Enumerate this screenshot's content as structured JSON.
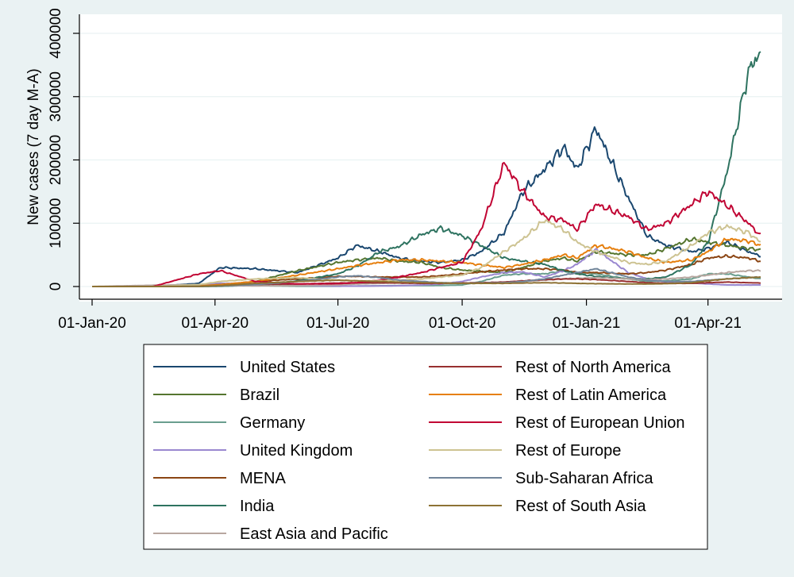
{
  "chart_data": {
    "type": "line",
    "xlabel": "",
    "ylabel": "New cases (7 day M-A)",
    "x_tick_labels": [
      "01-Jan-20",
      "01-Apr-20",
      "01-Jul-20",
      "01-Oct-20",
      "01-Jan-21",
      "01-Apr-21"
    ],
    "y_tick_labels": [
      "0",
      "100000",
      "200000",
      "300000",
      "400000"
    ],
    "x_range": [
      "2020-01-01",
      "2021-05-10"
    ],
    "ylim": [
      0,
      400000
    ],
    "grid": "horizontal",
    "legend_position": "bottom",
    "legend_columns": 2,
    "x": [
      "2020-01-01",
      "2020-02-15",
      "2020-03-20",
      "2020-04-05",
      "2020-05-01",
      "2020-06-01",
      "2020-07-01",
      "2020-07-15",
      "2020-08-01",
      "2020-08-15",
      "2020-09-01",
      "2020-09-15",
      "2020-10-01",
      "2020-10-15",
      "2020-11-01",
      "2020-11-15",
      "2020-12-01",
      "2020-12-15",
      "2020-12-25",
      "2021-01-08",
      "2021-02-01",
      "2021-02-15",
      "2021-03-01",
      "2021-03-20",
      "2021-04-01",
      "2021-04-15",
      "2021-05-01",
      "2021-05-10"
    ],
    "series": [
      {
        "name": "United States",
        "color": "#1a476f",
        "values": [
          0,
          0,
          5000,
          30000,
          28000,
          22000,
          45000,
          65000,
          55000,
          45000,
          40000,
          38000,
          42000,
          55000,
          85000,
          150000,
          185000,
          220000,
          185000,
          250000,
          140000,
          80000,
          65000,
          55000,
          60000,
          70000,
          55000,
          48000
        ]
      },
      {
        "name": "Brazil",
        "color": "#55752f",
        "values": [
          0,
          0,
          0,
          1000,
          8000,
          25000,
          38000,
          42000,
          45000,
          40000,
          38000,
          30000,
          26000,
          24000,
          22000,
          30000,
          40000,
          45000,
          40000,
          55000,
          50000,
          50000,
          60000,
          75000,
          70000,
          65000,
          60000,
          58000
        ]
      },
      {
        "name": "Germany",
        "color": "#6a9e8e",
        "values": [
          0,
          0,
          2000,
          5000,
          1500,
          500,
          500,
          800,
          1200,
          1500,
          1500,
          1800,
          2500,
          8000,
          18000,
          20000,
          20000,
          25000,
          22000,
          20000,
          12000,
          8000,
          9000,
          12000,
          20000,
          20000,
          15000,
          12000
        ]
      },
      {
        "name": "United Kingdom",
        "color": "#9a88d0",
        "values": [
          0,
          0,
          2000,
          5000,
          4500,
          1500,
          700,
          600,
          900,
          1200,
          2500,
          4000,
          8000,
          15000,
          22000,
          23000,
          15000,
          25000,
          35000,
          58000,
          22000,
          12000,
          7000,
          5500,
          4000,
          2500,
          2500,
          2500
        ]
      },
      {
        "name": "MENA",
        "color": "#8b4513",
        "values": [
          0,
          0,
          1000,
          3000,
          8000,
          12000,
          16000,
          16000,
          15000,
          15000,
          15000,
          17000,
          20000,
          23000,
          26000,
          28000,
          28000,
          26000,
          22000,
          22000,
          20000,
          22000,
          26000,
          35000,
          45000,
          48000,
          45000,
          40000
        ]
      },
      {
        "name": "India",
        "color": "#2e7360",
        "values": [
          0,
          0,
          100,
          500,
          2000,
          9000,
          20000,
          32000,
          55000,
          63000,
          82000,
          92000,
          80000,
          65000,
          45000,
          40000,
          35000,
          25000,
          20000,
          16000,
          12000,
          12000,
          15000,
          35000,
          70000,
          180000,
          340000,
          372000
        ]
      },
      {
        "name": "East Asia and Pacific",
        "color": "#b8a7a0",
        "values": [
          0,
          2000,
          3000,
          1500,
          1000,
          1500,
          2500,
          4000,
          5000,
          6000,
          6500,
          6000,
          5500,
          6000,
          7000,
          8000,
          10000,
          12000,
          13000,
          14000,
          12000,
          11000,
          12000,
          15000,
          18000,
          22000,
          25000,
          25000
        ]
      },
      {
        "name": "Rest of North America",
        "color": "#983030",
        "values": [
          0,
          0,
          500,
          2500,
          3500,
          4000,
          5500,
          6000,
          6000,
          5500,
          5000,
          5000,
          5500,
          6000,
          7000,
          9000,
          11000,
          12000,
          12000,
          11000,
          8000,
          6000,
          5000,
          5000,
          6000,
          7000,
          6000,
          5500
        ]
      },
      {
        "name": "Rest of Latin America",
        "color": "#e67f0e",
        "values": [
          0,
          0,
          1000,
          3000,
          8000,
          18000,
          28000,
          33000,
          38000,
          42000,
          42000,
          40000,
          38000,
          34000,
          30000,
          35000,
          42000,
          50000,
          45000,
          65000,
          55000,
          45000,
          38000,
          42000,
          55000,
          75000,
          72000,
          65000
        ]
      },
      {
        "name": "Rest of European Union",
        "color": "#c10534",
        "values": [
          0,
          0,
          20000,
          25000,
          8000,
          4000,
          4500,
          6000,
          10000,
          15000,
          22000,
          30000,
          38000,
          90000,
          195000,
          150000,
          110000,
          105000,
          90000,
          130000,
          110000,
          90000,
          100000,
          130000,
          150000,
          128000,
          100000,
          80000
        ]
      },
      {
        "name": "Rest of Europe",
        "color": "#cdc392",
        "values": [
          0,
          0,
          3000,
          8000,
          12000,
          14000,
          10000,
          9000,
          9000,
          10000,
          12000,
          15000,
          18000,
          30000,
          55000,
          75000,
          105000,
          90000,
          70000,
          55000,
          38000,
          35000,
          40000,
          65000,
          85000,
          95000,
          85000,
          70000
        ]
      },
      {
        "name": "Sub-Saharan Africa",
        "color": "#71859a",
        "values": [
          0,
          0,
          200,
          1000,
          3000,
          8000,
          15000,
          17000,
          14000,
          10000,
          8000,
          6000,
          5000,
          5500,
          6000,
          8000,
          12000,
          18000,
          22000,
          28000,
          15000,
          10000,
          8000,
          8000,
          10000,
          12000,
          14000,
          15000
        ]
      },
      {
        "name": "Rest of South Asia",
        "color": "#8d7234",
        "values": [
          0,
          0,
          300,
          1500,
          5000,
          8000,
          10000,
          9000,
          8000,
          7000,
          6000,
          5500,
          5000,
          5000,
          5000,
          5500,
          6000,
          5500,
          5000,
          4500,
          4000,
          4000,
          4500,
          6000,
          9000,
          12000,
          14000,
          15000
        ]
      }
    ]
  }
}
